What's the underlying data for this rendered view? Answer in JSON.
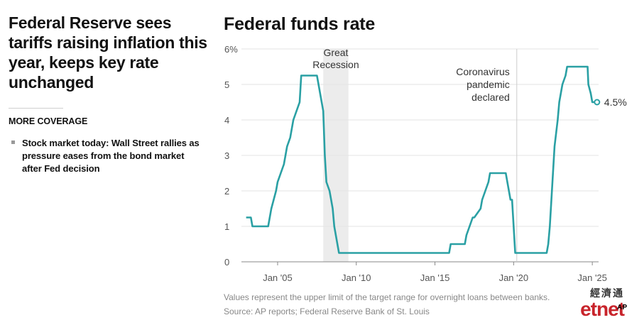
{
  "article": {
    "headline": "Federal Reserve sees tariffs raising inflation this year, keeps key rate unchanged",
    "more_coverage_title": "MORE COVERAGE",
    "stories": [
      "Stock market today: Wall Street rallies as pressure eases from the bond market after Fed decision"
    ]
  },
  "chart_data": {
    "type": "line",
    "title": "Federal funds rate",
    "ytick_labels": [
      "0",
      "1",
      "2",
      "3",
      "4",
      "5",
      "6%"
    ],
    "ytick_values": [
      0,
      1,
      2,
      3,
      4,
      5,
      6
    ],
    "xtick_labels": [
      "Jan '05",
      "Jan '10",
      "Jan '15",
      "Jan '20",
      "Jan '25"
    ],
    "xtick_values": [
      2005,
      2010,
      2015,
      2020,
      2025
    ],
    "ylim": [
      0,
      6
    ],
    "xlim": [
      2002.7,
      2025.4
    ],
    "grid": true,
    "line_color": "#2aa0a4",
    "shade_color": "#ececec",
    "series": [
      {
        "x": [
          2003.0,
          2003.3,
          2003.4,
          2004.4,
          2004.5,
          2004.6,
          2004.75,
          2004.9,
          2005.0,
          2005.2,
          2005.4,
          2005.5,
          2005.6,
          2005.8,
          2005.9,
          2006.0,
          2006.2,
          2006.4,
          2006.5,
          2007.5,
          2007.7,
          2007.8,
          2007.9,
          2008.0,
          2008.1,
          2008.3,
          2008.5,
          2008.6,
          2008.9,
          2009.0,
          2015.9,
          2016.0,
          2016.9,
          2017.0,
          2017.2,
          2017.4,
          2017.5,
          2017.9,
          2018.0,
          2018.2,
          2018.4,
          2018.5,
          2018.7,
          2018.9,
          2019.5,
          2019.6,
          2019.7,
          2019.8,
          2019.9,
          2020.1,
          2020.2,
          2022.1,
          2022.2,
          2022.3,
          2022.4,
          2022.5,
          2022.6,
          2022.8,
          2022.9,
          2023.0,
          2023.1,
          2023.3,
          2023.4,
          2023.6,
          2024.7,
          2024.75,
          2024.9,
          2025.0,
          2025.3
        ],
        "y": [
          1.25,
          1.25,
          1.0,
          1.0,
          1.25,
          1.5,
          1.75,
          2.0,
          2.25,
          2.5,
          2.75,
          3.0,
          3.25,
          3.5,
          3.75,
          4.0,
          4.25,
          4.5,
          5.25,
          5.25,
          4.75,
          4.5,
          4.25,
          3.0,
          2.25,
          2.0,
          1.5,
          1.0,
          0.25,
          0.25,
          0.25,
          0.5,
          0.5,
          0.75,
          1.0,
          1.25,
          1.25,
          1.5,
          1.75,
          2.0,
          2.25,
          2.5,
          2.5,
          2.5,
          2.5,
          2.25,
          2.0,
          1.75,
          1.75,
          0.25,
          0.25,
          0.25,
          0.5,
          1.0,
          1.75,
          2.5,
          3.25,
          4.0,
          4.5,
          4.75,
          5.0,
          5.25,
          5.5,
          5.5,
          5.5,
          5.0,
          4.75,
          4.5,
          4.5
        ]
      }
    ],
    "endpoint_label": "4.5%",
    "endpoint_value": 4.5,
    "shaded_regions": [
      {
        "start": 2007.9,
        "end": 2009.5,
        "label_lines": [
          "Great",
          "Recession"
        ]
      }
    ],
    "vertical_markers": [
      {
        "x": 2020.2,
        "label_lines": [
          "Coronavirus",
          "pandemic",
          "declared"
        ]
      }
    ],
    "footnote": "Values represent the upper limit of the target range for overnight loans between banks.",
    "source": "Source: AP reports; Federal Reserve Bank of St. Louis"
  },
  "branding": {
    "logo_cn": "經濟通",
    "logo_en": "etnet",
    "logo_ap": "AP"
  }
}
